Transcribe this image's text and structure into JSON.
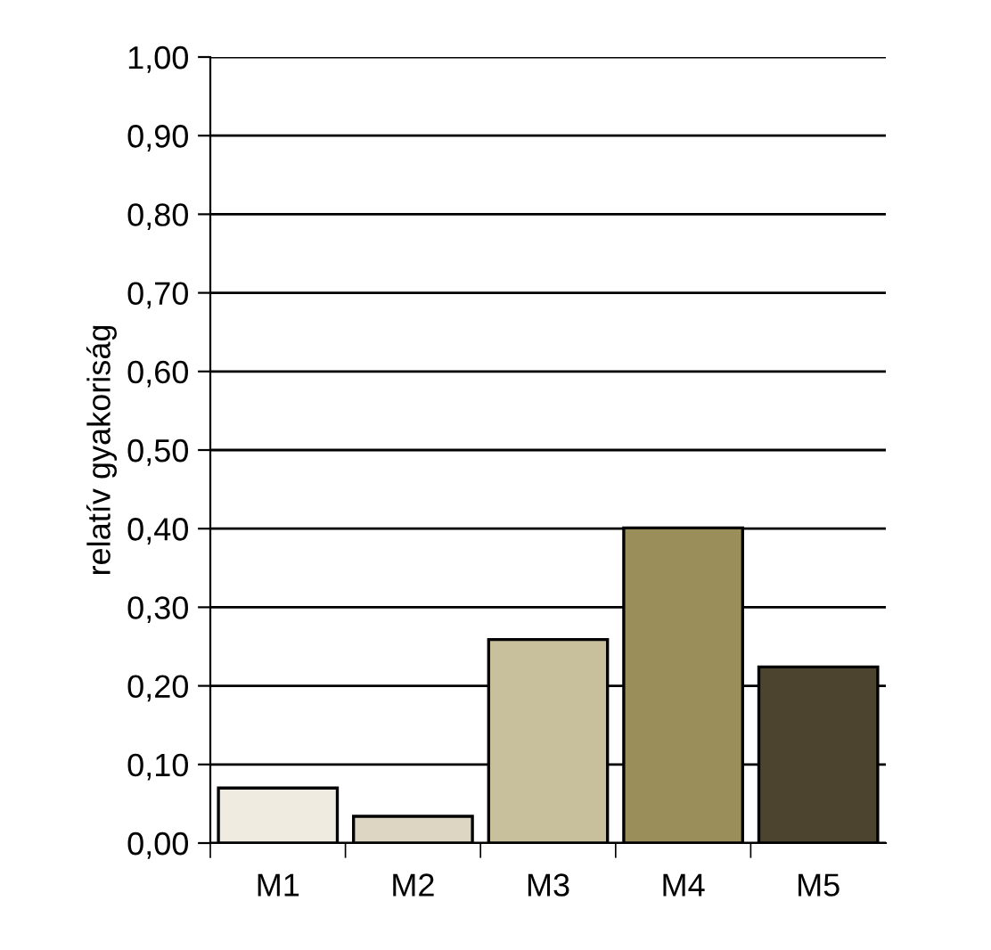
{
  "chart_data": {
    "type": "bar",
    "ylabel": "relatív gyakoriság",
    "categories": [
      "M1",
      "M2",
      "M3",
      "M4",
      "M5"
    ],
    "values": [
      0.07,
      0.034,
      0.259,
      0.401,
      0.224
    ],
    "colors": [
      "#efebe0",
      "#dcd6c2",
      "#c8bf9c",
      "#9a8f5a",
      "#4d4430"
    ],
    "ylim": [
      0,
      1
    ],
    "yticks": [
      {
        "value": 0,
        "label": "0,00"
      },
      {
        "value": 0.1,
        "label": "0,10"
      },
      {
        "value": 0.2,
        "label": "0,20"
      },
      {
        "value": 0.3,
        "label": "0,30"
      },
      {
        "value": 0.4,
        "label": "0,40"
      },
      {
        "value": 0.5,
        "label": "0,50"
      },
      {
        "value": 0.6,
        "label": "0,60"
      },
      {
        "value": 0.7,
        "label": "0,70"
      },
      {
        "value": 0.8,
        "label": "0,80"
      },
      {
        "value": 0.9,
        "label": "0,90"
      },
      {
        "value": 1,
        "label": "1,00"
      }
    ],
    "grid": "y"
  }
}
